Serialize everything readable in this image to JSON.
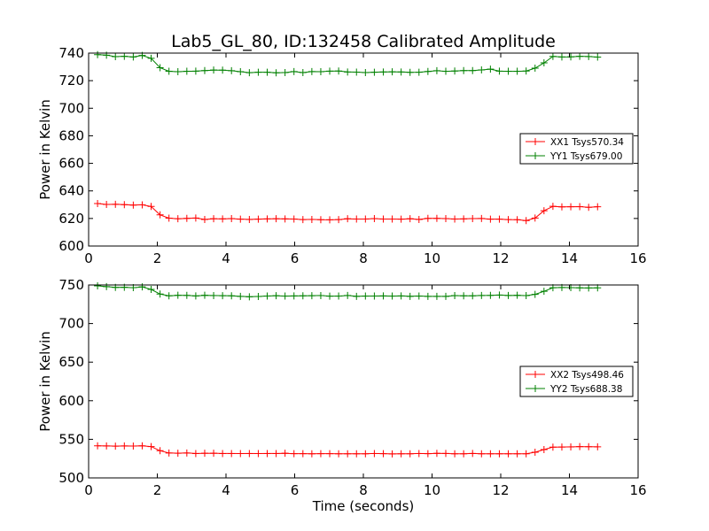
{
  "chart_data": {
    "title": "Lab5_GL_80, ID:132458 Calibrated Amplitude",
    "panels": [
      {
        "type": "line",
        "xlabel": "",
        "ylabel": "Power in Kelvin",
        "xlim": [
          0,
          16
        ],
        "ylim": [
          600,
          740
        ],
        "xticks": [
          "0",
          "2",
          "4",
          "6",
          "8",
          "10",
          "12",
          "14",
          "16"
        ],
        "yticks": [
          "600",
          "620",
          "640",
          "660",
          "680",
          "700",
          "720",
          "740"
        ],
        "legend": "center-right",
        "x": [
          0.26,
          0.52,
          0.78,
          1.04,
          1.3,
          1.56,
          1.82,
          2.08,
          2.34,
          2.6,
          2.86,
          3.12,
          3.38,
          3.64,
          3.9,
          4.16,
          4.42,
          4.68,
          4.94,
          5.2,
          5.46,
          5.72,
          5.98,
          6.24,
          6.5,
          6.76,
          7.02,
          7.28,
          7.54,
          7.8,
          8.06,
          8.32,
          8.58,
          8.84,
          9.1,
          9.36,
          9.62,
          9.88,
          10.14,
          10.4,
          10.66,
          10.92,
          11.18,
          11.44,
          11.7,
          11.96,
          12.22,
          12.48,
          12.74,
          13.0,
          13.26,
          13.52,
          13.78,
          14.04,
          14.3,
          14.56,
          14.82
        ],
        "series": [
          {
            "name": "XX1 Tsys570.34",
            "color": "#ff0000",
            "values": [
              630.8,
              630.2,
              630.3,
              630.0,
              629.7,
              629.9,
              628.7,
              622.6,
              620.2,
              619.8,
              620.1,
              620.3,
              619.3,
              619.8,
              619.7,
              619.9,
              619.5,
              619.3,
              619.5,
              619.7,
              619.8,
              619.7,
              619.6,
              619.2,
              619.3,
              619.1,
              619.0,
              619.2,
              619.8,
              619.6,
              619.6,
              619.9,
              619.6,
              619.6,
              619.5,
              619.8,
              619.3,
              620.1,
              620.1,
              619.9,
              619.6,
              619.7,
              619.9,
              620.0,
              619.5,
              619.5,
              619.2,
              619.1,
              618.5,
              620.3,
              625.6,
              628.8,
              628.4,
              628.5,
              628.6,
              628.1,
              628.5
            ]
          },
          {
            "name": "YY1 Tsys679.00",
            "color": "#008000",
            "values": [
              738.9,
              738.5,
              737.4,
              737.7,
              737.2,
              738.3,
              736.2,
              729.4,
              726.8,
              726.5,
              726.8,
              726.9,
              727.3,
              727.7,
              727.6,
              727.2,
              726.5,
              725.8,
              726.1,
              726.1,
              725.7,
              725.9,
              726.6,
              725.9,
              726.6,
              726.5,
              726.9,
              727.0,
              726.3,
              726.2,
              725.9,
              726.1,
              726.3,
              726.4,
              726.3,
              726.0,
              726.1,
              726.7,
              727.2,
              726.8,
              727.0,
              727.3,
              727.3,
              727.8,
              728.4,
              726.9,
              726.8,
              726.8,
              727.0,
              729.1,
              732.9,
              737.6,
              737.2,
              737.3,
              737.7,
              737.5,
              737.1
            ]
          }
        ]
      },
      {
        "type": "line",
        "xlabel": "Time (seconds)",
        "ylabel": "Power in Kelvin",
        "xlim": [
          0,
          16
        ],
        "ylim": [
          500,
          750
        ],
        "xticks": [
          "0",
          "2",
          "4",
          "6",
          "8",
          "10",
          "12",
          "14",
          "16"
        ],
        "yticks": [
          "500",
          "550",
          "600",
          "650",
          "700",
          "750"
        ],
        "legend": "center-right",
        "x": [
          0.26,
          0.52,
          0.78,
          1.04,
          1.3,
          1.56,
          1.82,
          2.08,
          2.34,
          2.6,
          2.86,
          3.12,
          3.38,
          3.64,
          3.9,
          4.16,
          4.42,
          4.68,
          4.94,
          5.2,
          5.46,
          5.72,
          5.98,
          6.24,
          6.5,
          6.76,
          7.02,
          7.28,
          7.54,
          7.8,
          8.06,
          8.32,
          8.58,
          8.84,
          9.1,
          9.36,
          9.62,
          9.88,
          10.14,
          10.4,
          10.66,
          10.92,
          11.18,
          11.44,
          11.7,
          11.96,
          12.22,
          12.48,
          12.74,
          13.0,
          13.26,
          13.52,
          13.78,
          14.04,
          14.3,
          14.56,
          14.82
        ],
        "series": [
          {
            "name": "XX2 Tsys498.46",
            "color": "#ff0000",
            "values": [
              541.5,
              541.4,
              541.2,
              541.4,
              541.3,
              541.5,
              540.6,
              535.2,
              532.3,
              532.0,
              532.3,
              531.6,
              531.9,
              532.0,
              531.6,
              531.6,
              531.5,
              531.6,
              531.5,
              531.6,
              531.6,
              531.9,
              531.4,
              531.4,
              531.3,
              531.4,
              531.4,
              531.3,
              531.3,
              531.3,
              531.3,
              531.6,
              531.4,
              531.1,
              531.3,
              531.3,
              531.6,
              531.4,
              531.8,
              531.7,
              531.2,
              531.2,
              531.7,
              531.3,
              531.3,
              531.3,
              531.3,
              531.3,
              531.2,
              533.2,
              536.7,
              539.9,
              540.0,
              540.2,
              540.5,
              540.4,
              540.3
            ]
          },
          {
            "name": "YY2 Tsys688.38",
            "color": "#008000",
            "values": [
              748.8,
              747.8,
              746.9,
              747.0,
              746.5,
              747.5,
              744.3,
              738.2,
              736.0,
              736.6,
              736.5,
              735.8,
              736.6,
              736.3,
              736.1,
              736.0,
              735.2,
              734.7,
              735.1,
              735.7,
              736.1,
              735.6,
              735.8,
              736.0,
              736.1,
              736.3,
              735.5,
              735.6,
              736.4,
              735.3,
              735.6,
              735.7,
              735.8,
              735.6,
              735.8,
              735.3,
              735.7,
              735.2,
              735.2,
              735.2,
              736.2,
              736.0,
              736.0,
              736.4,
              736.5,
              736.9,
              736.4,
              736.6,
              736.2,
              737.8,
              741.8,
              746.4,
              746.7,
              746.6,
              746.3,
              746.1,
              746.3
            ]
          }
        ]
      }
    ]
  }
}
